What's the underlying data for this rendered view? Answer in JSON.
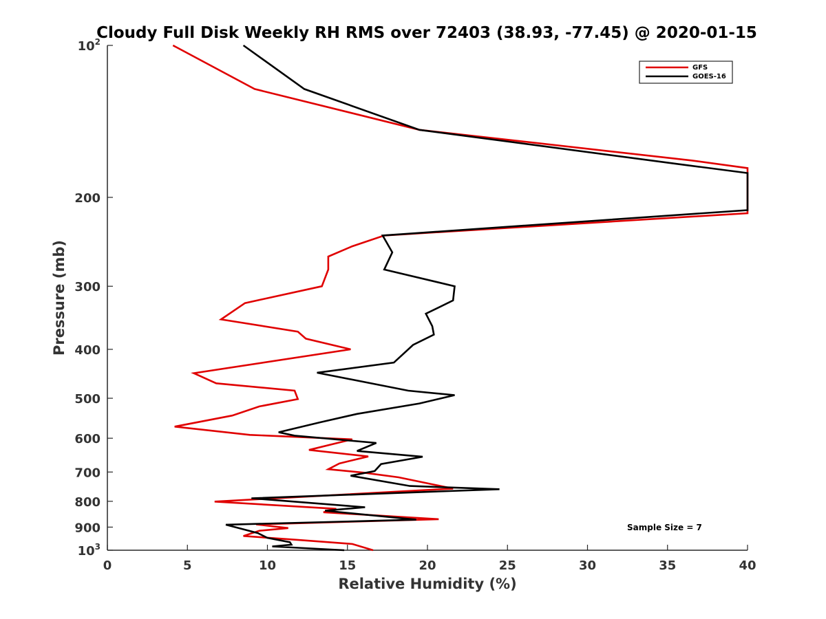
{
  "chart_data": {
    "type": "line",
    "title": "Cloudy Full Disk Weekly RH RMS over 72403 (38.93, -77.45) @ 2020-01-15",
    "xlabel": "Relative Humidity (%)",
    "ylabel": "Pressure (mb)",
    "xlim": [
      0,
      40
    ],
    "ylim": [
      100,
      1000
    ],
    "y_scale": "log",
    "y_reversed": true,
    "x_ticks": [
      0,
      5,
      10,
      15,
      20,
      25,
      30,
      35,
      40
    ],
    "y_ticks": [
      {
        "value": 100,
        "label": "10",
        "exp": "2"
      },
      {
        "value": 200,
        "label": "200"
      },
      {
        "value": 300,
        "label": "300"
      },
      {
        "value": 400,
        "label": "400"
      },
      {
        "value": 500,
        "label": "500"
      },
      {
        "value": 600,
        "label": "600"
      },
      {
        "value": 700,
        "label": "700"
      },
      {
        "value": 800,
        "label": "800"
      },
      {
        "value": 900,
        "label": "900"
      },
      {
        "value": 1000,
        "label": "10",
        "exp": "3"
      }
    ],
    "grid": false,
    "legend_position": "top-right",
    "annotation": "Sample Size = 7",
    "series": [
      {
        "name": "GFS",
        "color": "#e00000",
        "points": [
          [
            4.1,
            100
          ],
          [
            9.2,
            122
          ],
          [
            19.5,
            147
          ],
          [
            36.5,
            169
          ],
          [
            40,
            175
          ],
          [
            40,
            215
          ],
          [
            17.3,
            238
          ],
          [
            15.3,
            250
          ],
          [
            13.8,
            262
          ],
          [
            13.8,
            278
          ],
          [
            13.4,
            300
          ],
          [
            8.6,
            324
          ],
          [
            7.1,
            349
          ],
          [
            11.9,
            369
          ],
          [
            12.4,
            381
          ],
          [
            15.2,
            400
          ],
          [
            5.4,
            446
          ],
          [
            6.8,
            467
          ],
          [
            11.7,
            483
          ],
          [
            11.9,
            502
          ],
          [
            9.5,
            519
          ],
          [
            7.8,
            541
          ],
          [
            4.2,
            569
          ],
          [
            8.9,
            591
          ],
          [
            15.3,
            603
          ],
          [
            12.6,
            633
          ],
          [
            16.3,
            652
          ],
          [
            14.5,
            673
          ],
          [
            13.8,
            691
          ],
          [
            16.0,
            702
          ],
          [
            18.2,
            717
          ],
          [
            21.6,
            755
          ],
          [
            6.7,
            801
          ],
          [
            14.3,
            828
          ],
          [
            13.5,
            841
          ],
          [
            20.7,
            868
          ],
          [
            9.3,
            889
          ],
          [
            11.3,
            904
          ],
          [
            9.5,
            915
          ],
          [
            8.5,
            937
          ],
          [
            12.1,
            955
          ],
          [
            15.3,
            972
          ],
          [
            16.6,
            1000
          ]
        ]
      },
      {
        "name": "GOES-16",
        "color": "#000000",
        "points": [
          [
            8.5,
            100
          ],
          [
            12.3,
            122
          ],
          [
            19.5,
            147
          ],
          [
            35.8,
            172
          ],
          [
            40,
            179
          ],
          [
            40,
            212
          ],
          [
            17.2,
            238
          ],
          [
            17.8,
            257
          ],
          [
            17.3,
            278
          ],
          [
            21.7,
            300
          ],
          [
            21.6,
            320
          ],
          [
            19.9,
            340
          ],
          [
            20.3,
            360
          ],
          [
            20.4,
            374
          ],
          [
            19.1,
            392
          ],
          [
            17.9,
            425
          ],
          [
            13.1,
            445
          ],
          [
            18.8,
            483
          ],
          [
            21.7,
            493
          ],
          [
            19.5,
            512
          ],
          [
            15.6,
            537
          ],
          [
            13.3,
            558
          ],
          [
            10.7,
            584
          ],
          [
            11.7,
            593
          ],
          [
            16.8,
            613
          ],
          [
            15.6,
            636
          ],
          [
            19.7,
            653
          ],
          [
            17.1,
            675
          ],
          [
            16.7,
            697
          ],
          [
            15.2,
            712
          ],
          [
            18.9,
            746
          ],
          [
            24.5,
            757
          ],
          [
            9.0,
            789
          ],
          [
            16.1,
            822
          ],
          [
            13.6,
            835
          ],
          [
            19.3,
            870
          ],
          [
            7.4,
            890
          ],
          [
            9.4,
            925
          ],
          [
            10.0,
            945
          ],
          [
            11.4,
            964
          ],
          [
            11.5,
            975
          ],
          [
            10.3,
            983
          ],
          [
            14.8,
            1000
          ]
        ]
      }
    ]
  }
}
